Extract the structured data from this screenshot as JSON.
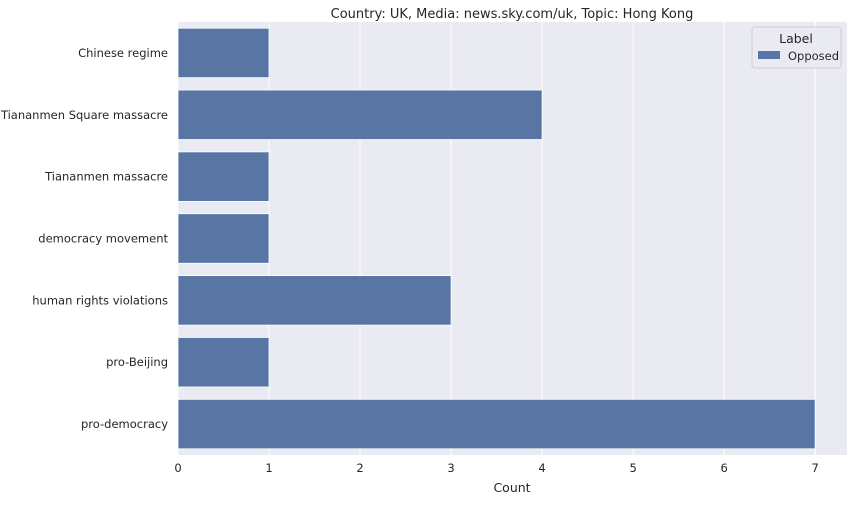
{
  "chart_data": {
    "type": "bar",
    "orientation": "horizontal",
    "title": "Country: UK, Media: news.sky.com/uk, Topic: Hong Kong",
    "xlabel": "Count",
    "ylabel": "",
    "categories": [
      "Chinese regime",
      "Tiananmen Square massacre",
      "Tiananmen massacre",
      "democracy movement",
      "human rights violations",
      "pro-Beijing",
      "pro-democracy"
    ],
    "series": [
      {
        "name": "Opposed",
        "values": [
          1,
          4,
          1,
          1,
          3,
          1,
          7
        ],
        "color": "#5875a4"
      }
    ],
    "xlim": [
      0,
      7.35
    ],
    "xticks": [
      0,
      1,
      2,
      3,
      4,
      5,
      6,
      7
    ],
    "grid": true,
    "background": "#eaeaf2",
    "grid_color": "#ffffff",
    "legend": {
      "title": "Label",
      "placement": "top-right"
    }
  }
}
